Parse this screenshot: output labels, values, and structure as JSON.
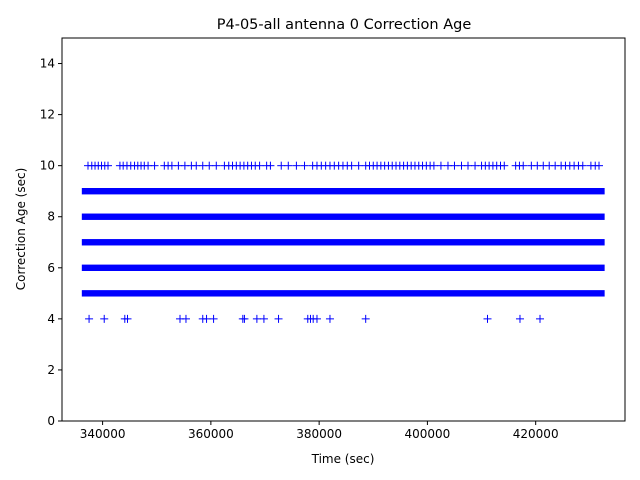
{
  "chart_data": {
    "type": "scatter",
    "title": "P4-05-all antenna 0 Correction Age",
    "xlabel": "Time (sec)",
    "ylabel": "Correction Age (sec)",
    "xlim": [
      332500,
      436500
    ],
    "ylim": [
      0,
      15
    ],
    "x_ticks": [
      340000,
      360000,
      380000,
      400000,
      420000
    ],
    "y_ticks": [
      0,
      2,
      4,
      6,
      8,
      10,
      12,
      14
    ],
    "marker": "+",
    "color": "#0000ff",
    "grid": false,
    "series": [
      {
        "band_values": [
          5,
          6,
          7,
          8,
          9
        ],
        "band_x_range": [
          336900,
          432000
        ]
      },
      {
        "y": 10,
        "x": [
          337300,
          338000,
          338600,
          339200,
          339800,
          340400,
          341000,
          343200,
          343800,
          344500,
          345200,
          345900,
          346500,
          347100,
          347700,
          348400,
          349600,
          351400,
          352100,
          352800,
          354000,
          355200,
          356400,
          357300,
          358500,
          359700,
          361000,
          362500,
          363300,
          364000,
          364700,
          365400,
          366100,
          366800,
          367500,
          368200,
          369000,
          370300,
          371000,
          373000,
          374300,
          375800,
          377300,
          378800,
          379600,
          380400,
          381200,
          382000,
          382800,
          383600,
          384400,
          385200,
          386000,
          387300,
          388600,
          389300,
          390000,
          390700,
          391400,
          392100,
          392800,
          393500,
          394200,
          394900,
          395600,
          396300,
          397000,
          397700,
          398400,
          399100,
          399800,
          400500,
          401200,
          402500,
          403800,
          405000,
          406300,
          407500,
          408800,
          410000,
          410700,
          411400,
          412100,
          412800,
          413500,
          414200,
          416300,
          417000,
          417700,
          419200,
          420300,
          421400,
          422500,
          423600,
          424700,
          425500,
          426300,
          427100,
          427900,
          428700,
          430200,
          431000,
          431700
        ]
      },
      {
        "y": 4,
        "x": [
          337500,
          340300,
          344100,
          344600,
          354300,
          355400,
          358500,
          359200,
          360500,
          365900,
          366200,
          368500,
          369800,
          372500,
          377900,
          378400,
          378900,
          379600,
          382000,
          388600,
          411100,
          417100,
          420800
        ]
      }
    ]
  }
}
